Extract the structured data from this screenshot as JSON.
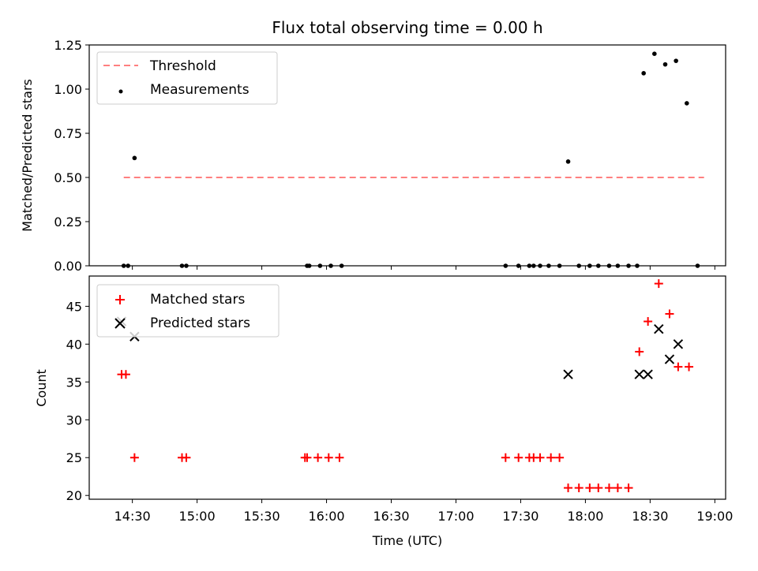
{
  "figure_title": "Flux total observing time = 0.00 h",
  "colors": {
    "threshold": "#ff7f7f",
    "measurement": "#000000",
    "matched": "#ff0000",
    "predicted": "#000000"
  },
  "chart_data": [
    {
      "type": "scatter",
      "panel": "top",
      "ylabel": "Matched/Predicted stars",
      "ylim": [
        0,
        1.25
      ],
      "yticks": [
        "0.00",
        "0.25",
        "0.50",
        "0.75",
        "1.00",
        "1.25"
      ],
      "legend": {
        "placement": "upper-left",
        "entries": [
          "Threshold",
          "Measurements"
        ]
      },
      "series": [
        {
          "name": "Threshold",
          "style": "dashed-line",
          "x": [
            "14:26",
            "18:55"
          ],
          "y": [
            0.5,
            0.5
          ]
        },
        {
          "name": "Measurements",
          "style": "dot",
          "x": [
            "14:26",
            "14:28",
            "14:31",
            "14:53",
            "14:55",
            "15:51",
            "15:52",
            "15:57",
            "16:02",
            "16:07",
            "17:23",
            "17:29",
            "17:34",
            "17:36",
            "17:39",
            "17:43",
            "17:48",
            "17:52",
            "17:57",
            "18:02",
            "18:06",
            "18:11",
            "18:15",
            "18:20",
            "18:24",
            "18:27",
            "18:32",
            "18:37",
            "18:42",
            "18:47",
            "18:52"
          ],
          "y": [
            0,
            0,
            0.61,
            0,
            0,
            0,
            0,
            0,
            0,
            0,
            0,
            0,
            0,
            0,
            0,
            0,
            0,
            0.59,
            0,
            0,
            0,
            0,
            0,
            0,
            0,
            1.09,
            1.2,
            1.14,
            1.16,
            0.92,
            0
          ]
        }
      ]
    },
    {
      "type": "scatter",
      "panel": "bottom",
      "ylabel": "Count",
      "xlabel": "Time (UTC)",
      "ylim": [
        19.5,
        49
      ],
      "yticks": [
        20,
        25,
        30,
        35,
        40,
        45
      ],
      "xlim": [
        "14:10",
        "19:05"
      ],
      "xticks": [
        "14:30",
        "15:00",
        "15:30",
        "16:00",
        "16:30",
        "17:00",
        "17:30",
        "18:00",
        "18:30",
        "19:00"
      ],
      "legend": {
        "placement": "upper-left",
        "entries": [
          "Matched stars",
          "Predicted stars"
        ]
      },
      "series": [
        {
          "name": "Matched stars",
          "marker": "+",
          "x": [
            "14:25",
            "14:27",
            "14:31",
            "14:53",
            "14:55",
            "15:50",
            "15:51",
            "15:56",
            "16:01",
            "16:06",
            "17:23",
            "17:29",
            "17:34",
            "17:36",
            "17:39",
            "17:44",
            "17:48",
            "17:52",
            "17:57",
            "18:02",
            "18:06",
            "18:11",
            "18:15",
            "18:20",
            "18:25",
            "18:29",
            "18:34",
            "18:39",
            "18:43",
            "18:48"
          ],
          "y": [
            36,
            36,
            25,
            25,
            25,
            25,
            25,
            25,
            25,
            25,
            25,
            25,
            25,
            25,
            25,
            25,
            25,
            21,
            21,
            21,
            21,
            21,
            21,
            21,
            39,
            43,
            48,
            44,
            37,
            37
          ]
        },
        {
          "name": "Predicted stars",
          "marker": "x",
          "x": [
            "14:25",
            "14:31",
            "17:52",
            "18:25",
            "18:29",
            "18:34",
            "18:39",
            "18:43"
          ],
          "y": [
            43,
            41,
            36,
            36,
            36,
            42,
            38,
            40
          ]
        }
      ]
    }
  ]
}
